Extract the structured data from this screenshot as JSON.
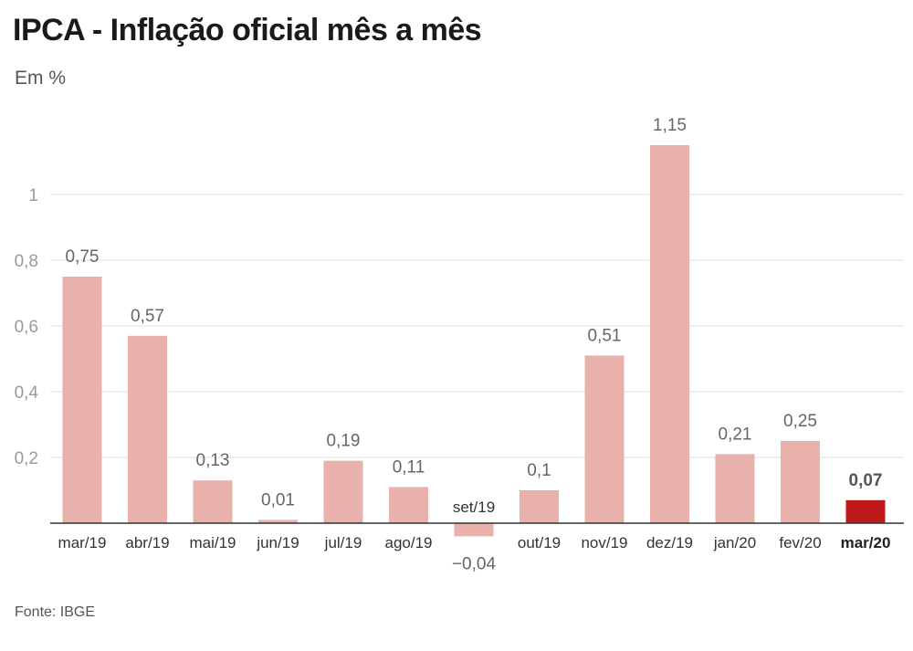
{
  "header": {
    "title": "IPCA - Inflação oficial mês a mês",
    "subtitle": "Em %"
  },
  "footer": {
    "source": "Fonte: IBGE"
  },
  "colors": {
    "bar": "#e8b1ac",
    "highlight": "#c0191c",
    "grid": "#dddddd",
    "axis": "#333333"
  },
  "chart_data": {
    "type": "bar",
    "categories": [
      "mar/19",
      "abr/19",
      "mai/19",
      "jun/19",
      "jul/19",
      "ago/19",
      "set/19",
      "out/19",
      "nov/19",
      "dez/19",
      "jan/20",
      "fev/20",
      "mar/20"
    ],
    "values": [
      0.75,
      0.57,
      0.13,
      0.01,
      0.19,
      0.11,
      -0.04,
      0.1,
      0.51,
      1.15,
      0.21,
      0.25,
      0.07
    ],
    "value_labels": [
      "0,75",
      "0,57",
      "0,13",
      "0,01",
      "0,19",
      "0,11",
      "−0,04",
      "0,1",
      "0,51",
      "1,15",
      "0,21",
      "0,25",
      "0,07"
    ],
    "highlight_category": "mar/20",
    "yticks": [
      0.2,
      0.4,
      0.6,
      0.8,
      1
    ],
    "ytick_labels": [
      "0,2",
      "0,4",
      "0,6",
      "0,8",
      "1"
    ],
    "ylim": [
      -0.04,
      1.15
    ],
    "grid": true,
    "legend": "none"
  }
}
